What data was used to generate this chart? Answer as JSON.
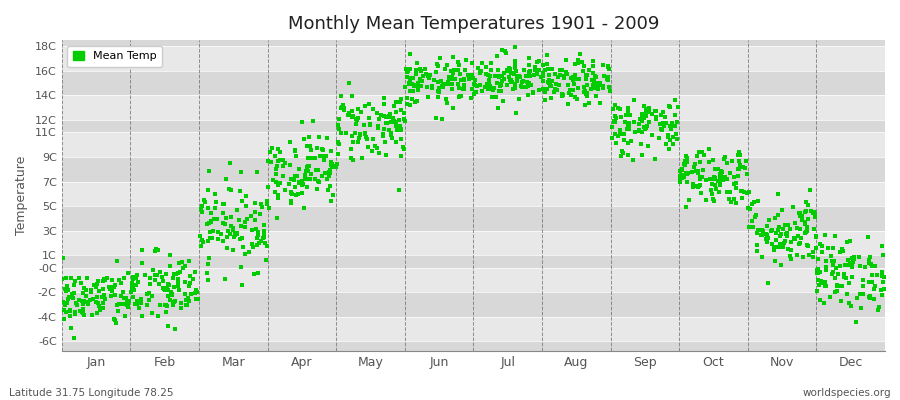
{
  "title": "Monthly Mean Temperatures 1901 - 2009",
  "ylabel": "Temperature",
  "subtitle_left": "Latitude 31.75 Longitude 78.25",
  "subtitle_right": "worldspecies.org",
  "ytick_labels": [
    "-6C",
    "-4C",
    "-2C",
    "-0C",
    "1C",
    "3C",
    "5C",
    "7C",
    "9C",
    "11C",
    "12C",
    "14C",
    "16C",
    "18C"
  ],
  "ytick_values": [
    -6,
    -4,
    -2,
    0,
    1,
    3,
    5,
    7,
    9,
    11,
    12,
    14,
    16,
    18
  ],
  "ylim": [
    -6.8,
    18.5
  ],
  "month_labels": [
    "Jan",
    "Feb",
    "Mar",
    "Apr",
    "May",
    "Jun",
    "Jul",
    "Aug",
    "Sep",
    "Oct",
    "Nov",
    "Dec"
  ],
  "dot_color": "#00CC00",
  "dot_size": 5,
  "background_color": "#ffffff",
  "plot_bg_color_light": "#f0f0f0",
  "plot_bg_color_dark": "#e0e0e0",
  "grid_color": "#666666",
  "legend_label": "Mean Temp",
  "seed": 42,
  "monthly_mean": [
    -2.5,
    -1.8,
    3.5,
    8.0,
    11.5,
    15.0,
    15.5,
    15.0,
    11.5,
    7.5,
    3.0,
    -0.5
  ],
  "monthly_std": [
    1.2,
    1.5,
    1.8,
    1.5,
    1.5,
    1.0,
    1.0,
    0.9,
    1.2,
    1.2,
    1.5,
    1.5
  ],
  "n_years": 109,
  "stripe_colors": [
    "#e8e8e8",
    "#d8d8d8"
  ]
}
